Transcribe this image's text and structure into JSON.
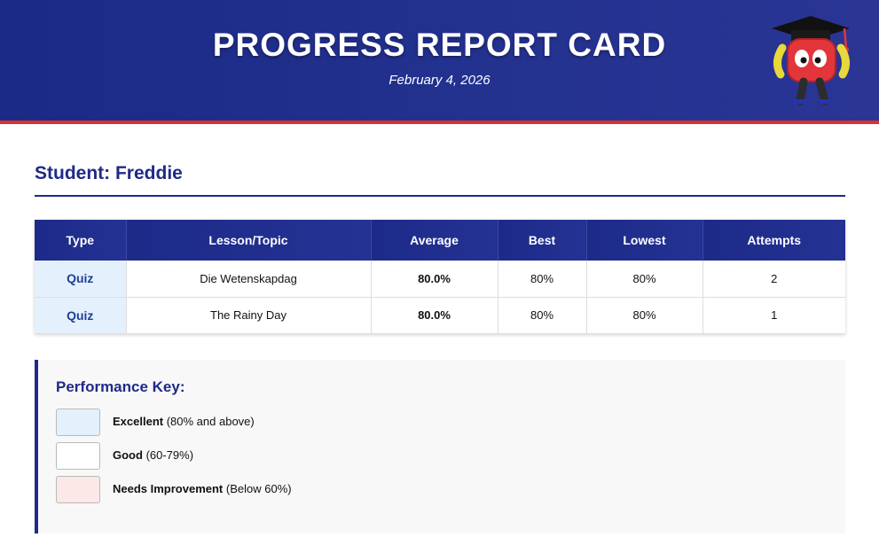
{
  "header": {
    "title": "PROGRESS REPORT CARD",
    "date": "February 4, 2026"
  },
  "student": {
    "label": "Student: Freddie"
  },
  "table": {
    "columns": [
      "Type",
      "Lesson/Topic",
      "Average",
      "Best",
      "Lowest",
      "Attempts"
    ],
    "rows": [
      {
        "type": "Quiz",
        "lesson": "Die Wetenskapdag",
        "average": "80.0%",
        "best": "80%",
        "lowest": "80%",
        "attempts": "2"
      },
      {
        "type": "Quiz",
        "lesson": "The Rainy Day",
        "average": "80.0%",
        "best": "80%",
        "lowest": "80%",
        "attempts": "1"
      }
    ]
  },
  "key": {
    "title": "Performance Key:",
    "items": [
      {
        "name": "Excellent",
        "range": "(80% and above)",
        "color": "#e3f1fd"
      },
      {
        "name": "Good",
        "range": "(60-79%)",
        "color": "#ffffff"
      },
      {
        "name": "Needs Improvement",
        "range": "(Below 60%)",
        "color": "#fde8e8"
      }
    ]
  },
  "colors": {
    "header_bg": "#1f2c8a",
    "header_border": "#d8322f",
    "accent": "#1f2a86"
  }
}
